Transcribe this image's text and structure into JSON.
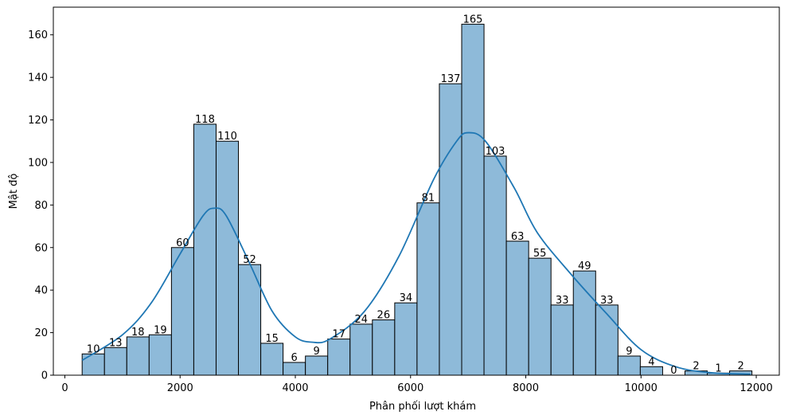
{
  "chart_data": {
    "type": "bar",
    "subtype": "histogram",
    "xlabel": "Phân phối lượt khám",
    "ylabel": "Mật độ",
    "xlim": [
      -200,
      12400
    ],
    "ylim": [
      0,
      173
    ],
    "xticks": [
      0,
      2000,
      4000,
      6000,
      8000,
      10000,
      12000
    ],
    "yticks": [
      0,
      20,
      40,
      60,
      80,
      100,
      120,
      140,
      160
    ],
    "bin_start": 300,
    "bin_width": 387.5,
    "values": [
      10,
      13,
      18,
      19,
      60,
      118,
      110,
      52,
      15,
      6,
      9,
      17,
      24,
      26,
      34,
      81,
      137,
      165,
      103,
      63,
      55,
      33,
      49,
      33,
      9,
      4,
      0,
      2,
      1,
      2
    ],
    "bar_color": "#8ebad9",
    "edge_color": "#000000",
    "kde_color": "#1f77b4",
    "kde_curve": {
      "x": [
        300,
        1000,
        1500,
        2000,
        2400,
        2600,
        2800,
        3200,
        3600,
        4000,
        4300,
        4600,
        5200,
        5800,
        6400,
        6800,
        7000,
        7300,
        7800,
        8200,
        8800,
        9400,
        10000,
        10600,
        11200,
        11900
      ],
      "y": [
        7,
        19,
        34,
        57,
        75,
        78.5,
        75,
        53,
        30,
        18,
        15.5,
        17,
        30,
        56,
        92,
        110,
        114,
        110,
        88,
        67,
        47,
        29,
        12,
        4,
        1.2,
        0.5
      ]
    },
    "grid": false,
    "legend": null
  }
}
